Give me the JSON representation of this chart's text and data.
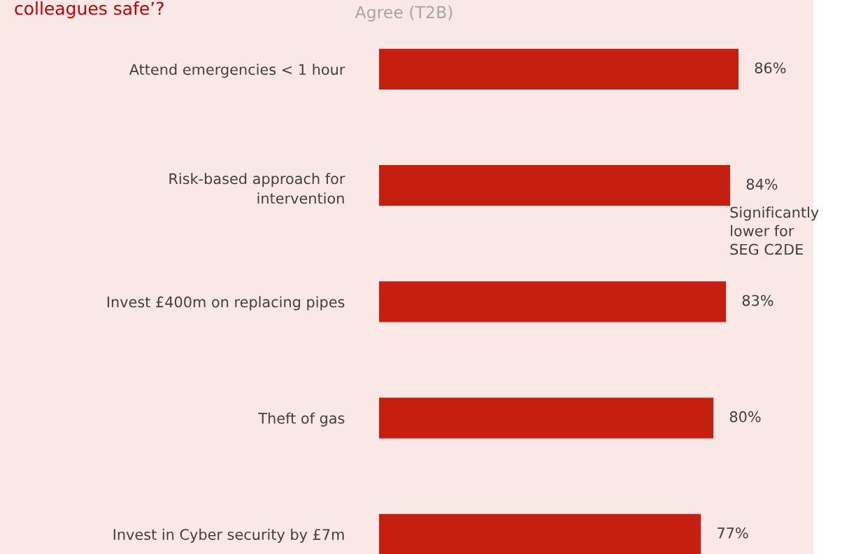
{
  "chart_data": {
    "type": "bar",
    "orientation": "horizontal",
    "title": "colleagues safe’?",
    "subtitle": "Agree (T2B)",
    "categories": [
      "Attend emergencies < 1 hour",
      "Risk-based approach for\nintervention",
      "Invest £400m on replacing pipes",
      "Theft of gas",
      "Invest in Cyber security by £7m"
    ],
    "values": [
      86,
      84,
      83,
      80,
      77
    ],
    "value_labels": [
      "86%",
      "84%",
      "83%",
      "80%",
      "77%"
    ],
    "color": "#c41f10",
    "tick_labels": "y",
    "grid": false,
    "legend": false,
    "annotations": [
      "Significantly\nlower for\nSEG C2DE"
    ]
  }
}
